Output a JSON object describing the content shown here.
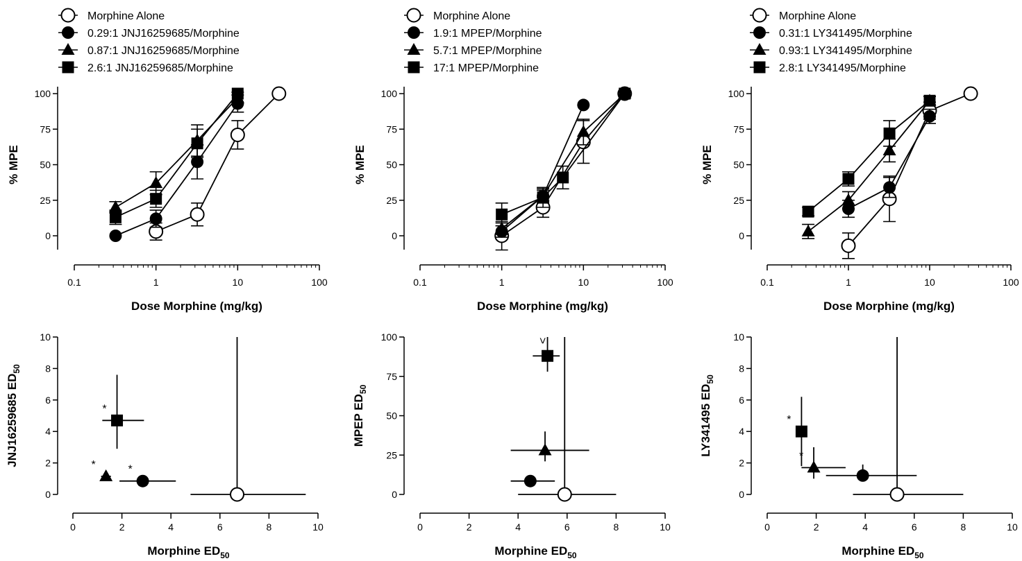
{
  "chart_data": [
    {
      "type": "line",
      "xscale": "log",
      "xlim": [
        0.1,
        100
      ],
      "ylim": [
        -10,
        100
      ],
      "xticks": [
        "0.1",
        "1",
        "10",
        "100"
      ],
      "yticks": [
        "0",
        "25",
        "50",
        "75",
        "100"
      ],
      "xlabel": "Dose Morphine (mg/kg)",
      "ylabel": "% MPE",
      "grid": false,
      "legend": "top-left",
      "series": [
        {
          "name": "Morphine Alone",
          "marker": "open-circle",
          "x": [
            1,
            3.2,
            10,
            32
          ],
          "y": [
            3,
            15,
            71,
            100
          ],
          "err": [
            6,
            8,
            10,
            0
          ]
        },
        {
          "name": "0.29:1 JNJ16259685/Morphine",
          "marker": "filled-circle",
          "x": [
            0.32,
            1,
            3.2,
            10
          ],
          "y": [
            0,
            12,
            52,
            93
          ],
          "err": [
            0,
            6,
            12,
            6
          ]
        },
        {
          "name": "0.87:1 JNJ16259685/Morphine",
          "marker": "triangle",
          "x": [
            0.32,
            1,
            3.2,
            10
          ],
          "y": [
            20,
            37,
            67,
            97
          ],
          "err": [
            4,
            8,
            11,
            4
          ]
        },
        {
          "name": "2.6:1 JNJ16259685/Morphine",
          "marker": "square",
          "x": [
            0.32,
            1,
            3.2,
            10
          ],
          "y": [
            13,
            26,
            65,
            100
          ],
          "err": [
            5,
            6,
            10,
            0
          ]
        }
      ]
    },
    {
      "type": "line",
      "xscale": "log",
      "xlim": [
        0.1,
        100
      ],
      "ylim": [
        -10,
        100
      ],
      "xticks": [
        "0.1",
        "1",
        "10",
        "100"
      ],
      "yticks": [
        "0",
        "25",
        "50",
        "75",
        "100"
      ],
      "xlabel": "Dose Morphine (mg/kg)",
      "ylabel": "% MPE",
      "grid": false,
      "legend": "top-left",
      "series": [
        {
          "name": "Morphine Alone",
          "marker": "open-circle",
          "x": [
            1,
            3.2,
            10,
            32
          ],
          "y": [
            0,
            20,
            66,
            100
          ],
          "err": [
            10,
            7,
            15,
            0
          ]
        },
        {
          "name": "1.9:1 MPEP/Morphine",
          "marker": "filled-circle",
          "x": [
            1,
            3.2,
            10
          ],
          "y": [
            3,
            28,
            92
          ],
          "err": [
            4,
            4,
            0
          ]
        },
        {
          "name": "5.7:1 MPEP/Morphine",
          "marker": "triangle",
          "x": [
            1,
            3.2,
            10,
            32
          ],
          "y": [
            5,
            28,
            73,
            100
          ],
          "err": [
            4,
            5,
            9,
            0
          ]
        },
        {
          "name": "17:1 MPEP/Morphine",
          "marker": "square",
          "x": [
            1,
            3.2,
            5.6,
            32
          ],
          "y": [
            15,
            27,
            41,
            100
          ],
          "err": [
            8,
            7,
            8,
            0
          ]
        }
      ]
    },
    {
      "type": "line",
      "xscale": "log",
      "xlim": [
        0.1,
        100
      ],
      "ylim": [
        -10,
        100
      ],
      "xticks": [
        "0.1",
        "1",
        "10",
        "100"
      ],
      "yticks": [
        "0",
        "25",
        "50",
        "75",
        "100"
      ],
      "xlabel": "Dose Morphine (mg/kg)",
      "ylabel": "% MPE",
      "grid": false,
      "legend": "top-left",
      "series": [
        {
          "name": "Morphine Alone",
          "marker": "open-circle",
          "x": [
            1,
            3.2,
            10,
            32
          ],
          "y": [
            -7,
            26,
            88,
            100
          ],
          "err": [
            9,
            16,
            6,
            0
          ]
        },
        {
          "name": "0.31:1 LY341495/Morphine",
          "marker": "filled-circle",
          "x": [
            1,
            3.2,
            10
          ],
          "y": [
            19,
            34,
            84
          ],
          "err": [
            6,
            7,
            5
          ]
        },
        {
          "name": "0.93:1 LY341495/Morphine",
          "marker": "triangle",
          "x": [
            0.32,
            1,
            3.2,
            10
          ],
          "y": [
            3,
            25,
            60,
            95
          ],
          "err": [
            5,
            6,
            8,
            3
          ]
        },
        {
          "name": "2.8:1 LY341495/Morphine",
          "marker": "square",
          "x": [
            0.32,
            1,
            3.2,
            10
          ],
          "y": [
            17,
            40,
            72,
            95
          ],
          "err": [
            3,
            5,
            9,
            3
          ]
        }
      ]
    },
    {
      "type": "scatter",
      "xlim": [
        0,
        10
      ],
      "ylim": [
        0,
        10
      ],
      "xticks": [
        "0",
        "2",
        "4",
        "6",
        "8",
        "10"
      ],
      "yticks": [
        "0",
        "2",
        "4",
        "6",
        "8",
        "10"
      ],
      "xlabel": "Morphine ED",
      "xlabel_sub": "50",
      "ylabel": "JNJ16259685 ED",
      "ylabel_sub": "50",
      "grid": false,
      "points": [
        {
          "marker": "open-circle",
          "x": 6.7,
          "y": 0,
          "xerr": [
            4.8,
            9.5
          ],
          "yerr": [
            0,
            10
          ]
        },
        {
          "marker": "filled-circle",
          "x": 2.85,
          "y": 0.85,
          "xerr": [
            1.9,
            4.2
          ],
          "yerr": null,
          "annot": "*"
        },
        {
          "marker": "triangle",
          "x": 1.35,
          "y": 1.15,
          "xerr": [
            1.15,
            1.55
          ],
          "yerr": null,
          "annot": "*"
        },
        {
          "marker": "square",
          "x": 1.8,
          "y": 4.7,
          "xerr": [
            1.2,
            2.9
          ],
          "yerr": [
            2.9,
            7.6
          ],
          "annot": "*"
        }
      ]
    },
    {
      "type": "scatter",
      "xlim": [
        0,
        10
      ],
      "ylim": [
        0,
        100
      ],
      "xticks": [
        "0",
        "2",
        "4",
        "6",
        "8",
        "10"
      ],
      "yticks": [
        "0",
        "25",
        "50",
        "75",
        "100"
      ],
      "xlabel": "Morphine ED",
      "xlabel_sub": "50",
      "ylabel": "MPEP ED",
      "ylabel_sub": "50",
      "grid": false,
      "points": [
        {
          "marker": "open-circle",
          "x": 5.9,
          "y": 0,
          "xerr": [
            4.0,
            8.0
          ],
          "yerr": [
            0,
            100
          ]
        },
        {
          "marker": "filled-circle",
          "x": 4.5,
          "y": 8.5,
          "xerr": [
            3.7,
            5.5
          ],
          "yerr": null
        },
        {
          "marker": "triangle",
          "x": 5.1,
          "y": 28,
          "xerr": [
            3.7,
            6.9
          ],
          "yerr": [
            21,
            40
          ]
        },
        {
          "marker": "square",
          "x": 5.2,
          "y": 88,
          "xerr": [
            4.6,
            5.7
          ],
          "yerr": [
            78,
            100
          ],
          "annot": ">"
        }
      ]
    },
    {
      "type": "scatter",
      "xlim": [
        0,
        10
      ],
      "ylim": [
        0,
        10
      ],
      "xticks": [
        "0",
        "2",
        "4",
        "6",
        "8",
        "10"
      ],
      "yticks": [
        "0",
        "2",
        "4",
        "6",
        "8",
        "10"
      ],
      "xlabel": "Morphine ED",
      "xlabel_sub": "50",
      "ylabel": "LY341495 ED",
      "ylabel_sub": "50",
      "grid": false,
      "points": [
        {
          "marker": "open-circle",
          "x": 5.3,
          "y": 0,
          "xerr": [
            3.5,
            8.0
          ],
          "yerr": [
            0,
            10
          ]
        },
        {
          "marker": "filled-circle",
          "x": 3.9,
          "y": 1.2,
          "xerr": [
            2.4,
            6.1
          ],
          "yerr": [
            1.0,
            1.9
          ]
        },
        {
          "marker": "triangle",
          "x": 1.9,
          "y": 1.7,
          "xerr": [
            1.4,
            3.2
          ],
          "yerr": [
            1.0,
            3.0
          ],
          "annot": "*"
        },
        {
          "marker": "square",
          "x": 1.4,
          "y": 4.0,
          "xerr": [
            1.2,
            1.6
          ],
          "yerr": [
            1.8,
            6.2
          ],
          "annot": "*"
        }
      ]
    }
  ]
}
